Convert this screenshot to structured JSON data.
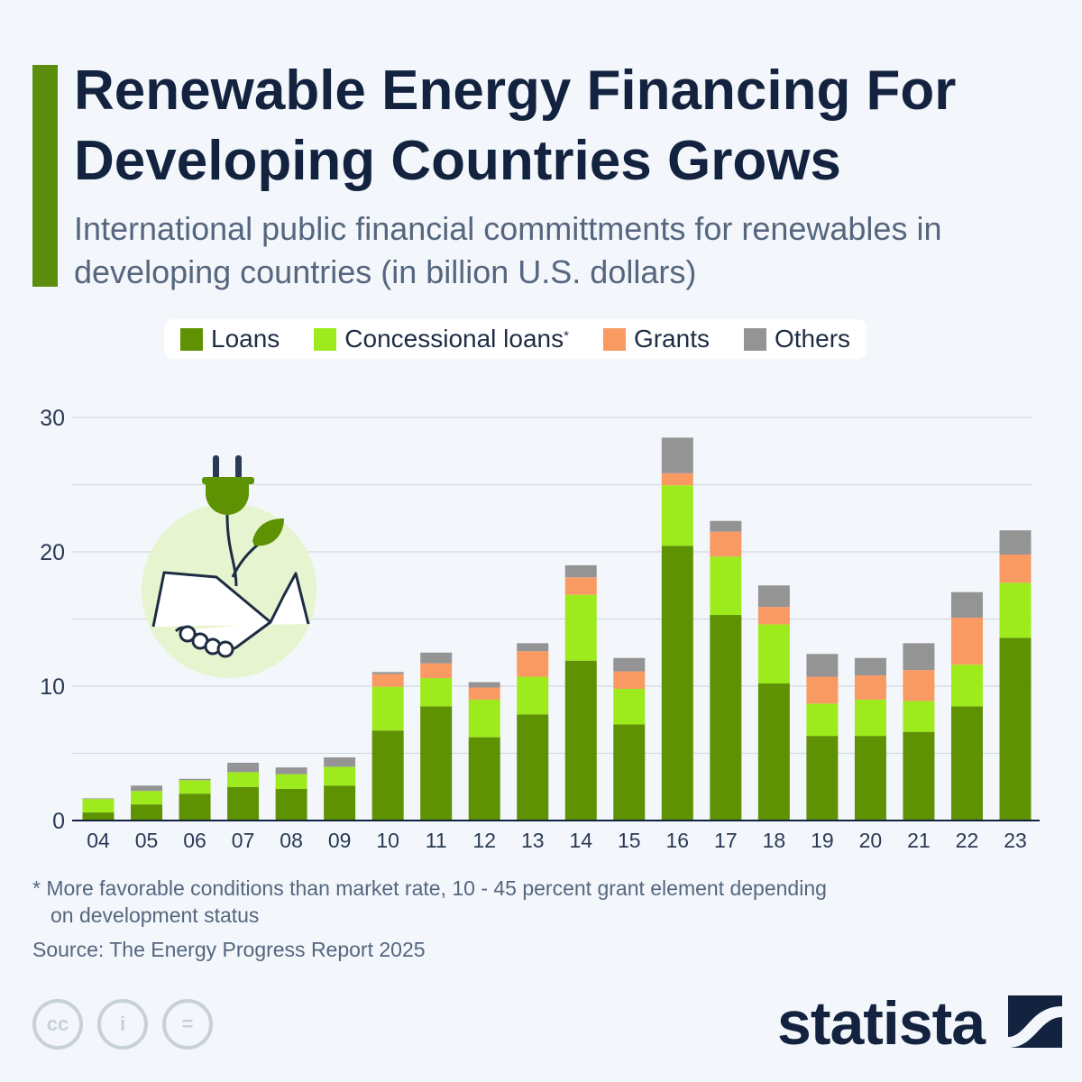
{
  "header": {
    "title": "Renewable Energy Financing For Developing Countries Grows",
    "subtitle": "International public financial committments for renewables in developing countries (in billion U.S. dollars)"
  },
  "footer": {
    "note_line1": "* More favorable conditions than market rate, 10 - 45 percent grant element depending",
    "note_line2": "on development status",
    "source": "Source: The Energy Progress Report 2025",
    "logo": "statista",
    "cc_icons": [
      "cc-icon",
      "attribution-icon",
      "no-derivatives-icon"
    ]
  },
  "chart_data": {
    "type": "bar",
    "stacked": true,
    "title": "Renewable Energy Financing For Developing Countries Grows",
    "ylabel": "",
    "xlabel": "",
    "ylim": [
      0,
      30
    ],
    "yticks": [
      "0",
      "10",
      "20",
      "30"
    ],
    "grid": true,
    "legend_position": "top",
    "categories": [
      "04",
      "05",
      "06",
      "07",
      "08",
      "09",
      "10",
      "11",
      "12",
      "13",
      "14",
      "15",
      "16",
      "17",
      "18",
      "19",
      "20",
      "21",
      "22",
      "23"
    ],
    "series": [
      {
        "name": "Loans",
        "color": "#5e9203",
        "values": [
          0.6,
          1.2,
          2.0,
          2.5,
          2.35,
          2.6,
          6.7,
          8.5,
          6.2,
          7.9,
          11.9,
          7.15,
          20.45,
          15.3,
          10.2,
          6.3,
          6.3,
          6.6,
          8.5,
          13.6
        ]
      },
      {
        "name": "Concessional loans",
        "marker": "*",
        "color": "#9deb1c",
        "values": [
          1.0,
          1.0,
          1.0,
          1.1,
          1.1,
          1.4,
          3.25,
          2.1,
          2.8,
          2.8,
          4.9,
          2.65,
          4.5,
          4.35,
          4.4,
          2.4,
          2.7,
          2.3,
          3.1,
          4.1
        ]
      },
      {
        "name": "Grants",
        "color": "#fa9a63",
        "values": [
          0,
          0,
          0,
          0,
          0,
          0,
          0.95,
          1.1,
          0.9,
          1.9,
          1.3,
          1.3,
          0.9,
          1.85,
          1.3,
          2.0,
          1.8,
          2.3,
          3.5,
          2.1
        ]
      },
      {
        "name": "Others",
        "color": "#949494",
        "values": [
          0.05,
          0.4,
          0.1,
          0.7,
          0.5,
          0.7,
          0.15,
          0.8,
          0.4,
          0.6,
          0.9,
          1.0,
          2.65,
          0.8,
          1.6,
          1.7,
          1.3,
          2.0,
          1.9,
          1.8
        ]
      }
    ]
  }
}
